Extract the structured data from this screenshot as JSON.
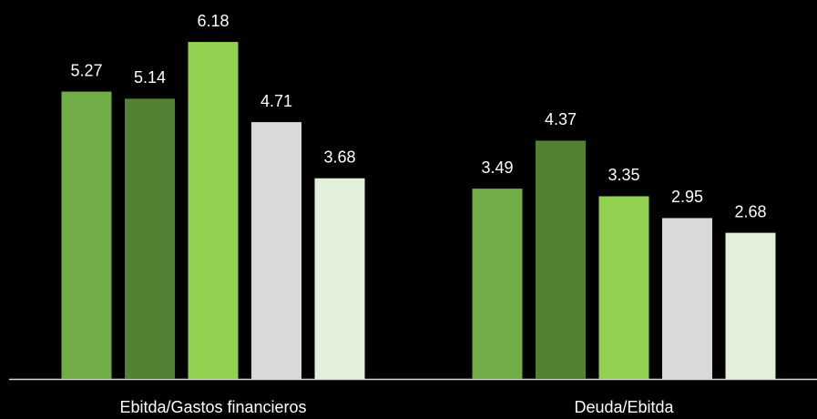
{
  "chart_data": {
    "type": "bar",
    "categories": [
      "Ebitda/Gastos financieros",
      "Deuda/Ebitda"
    ],
    "series": [
      {
        "color": "#70ad47",
        "values": [
          5.27,
          3.49
        ]
      },
      {
        "color": "#548235",
        "values": [
          5.14,
          4.37
        ]
      },
      {
        "color": "#92d050",
        "values": [
          6.18,
          3.35
        ]
      },
      {
        "color": "#d9d9d9",
        "values": [
          4.71,
          2.95
        ]
      },
      {
        "color": "#e2efda",
        "values": [
          3.68,
          2.68
        ]
      }
    ],
    "ylim": [
      0,
      6.95
    ]
  }
}
